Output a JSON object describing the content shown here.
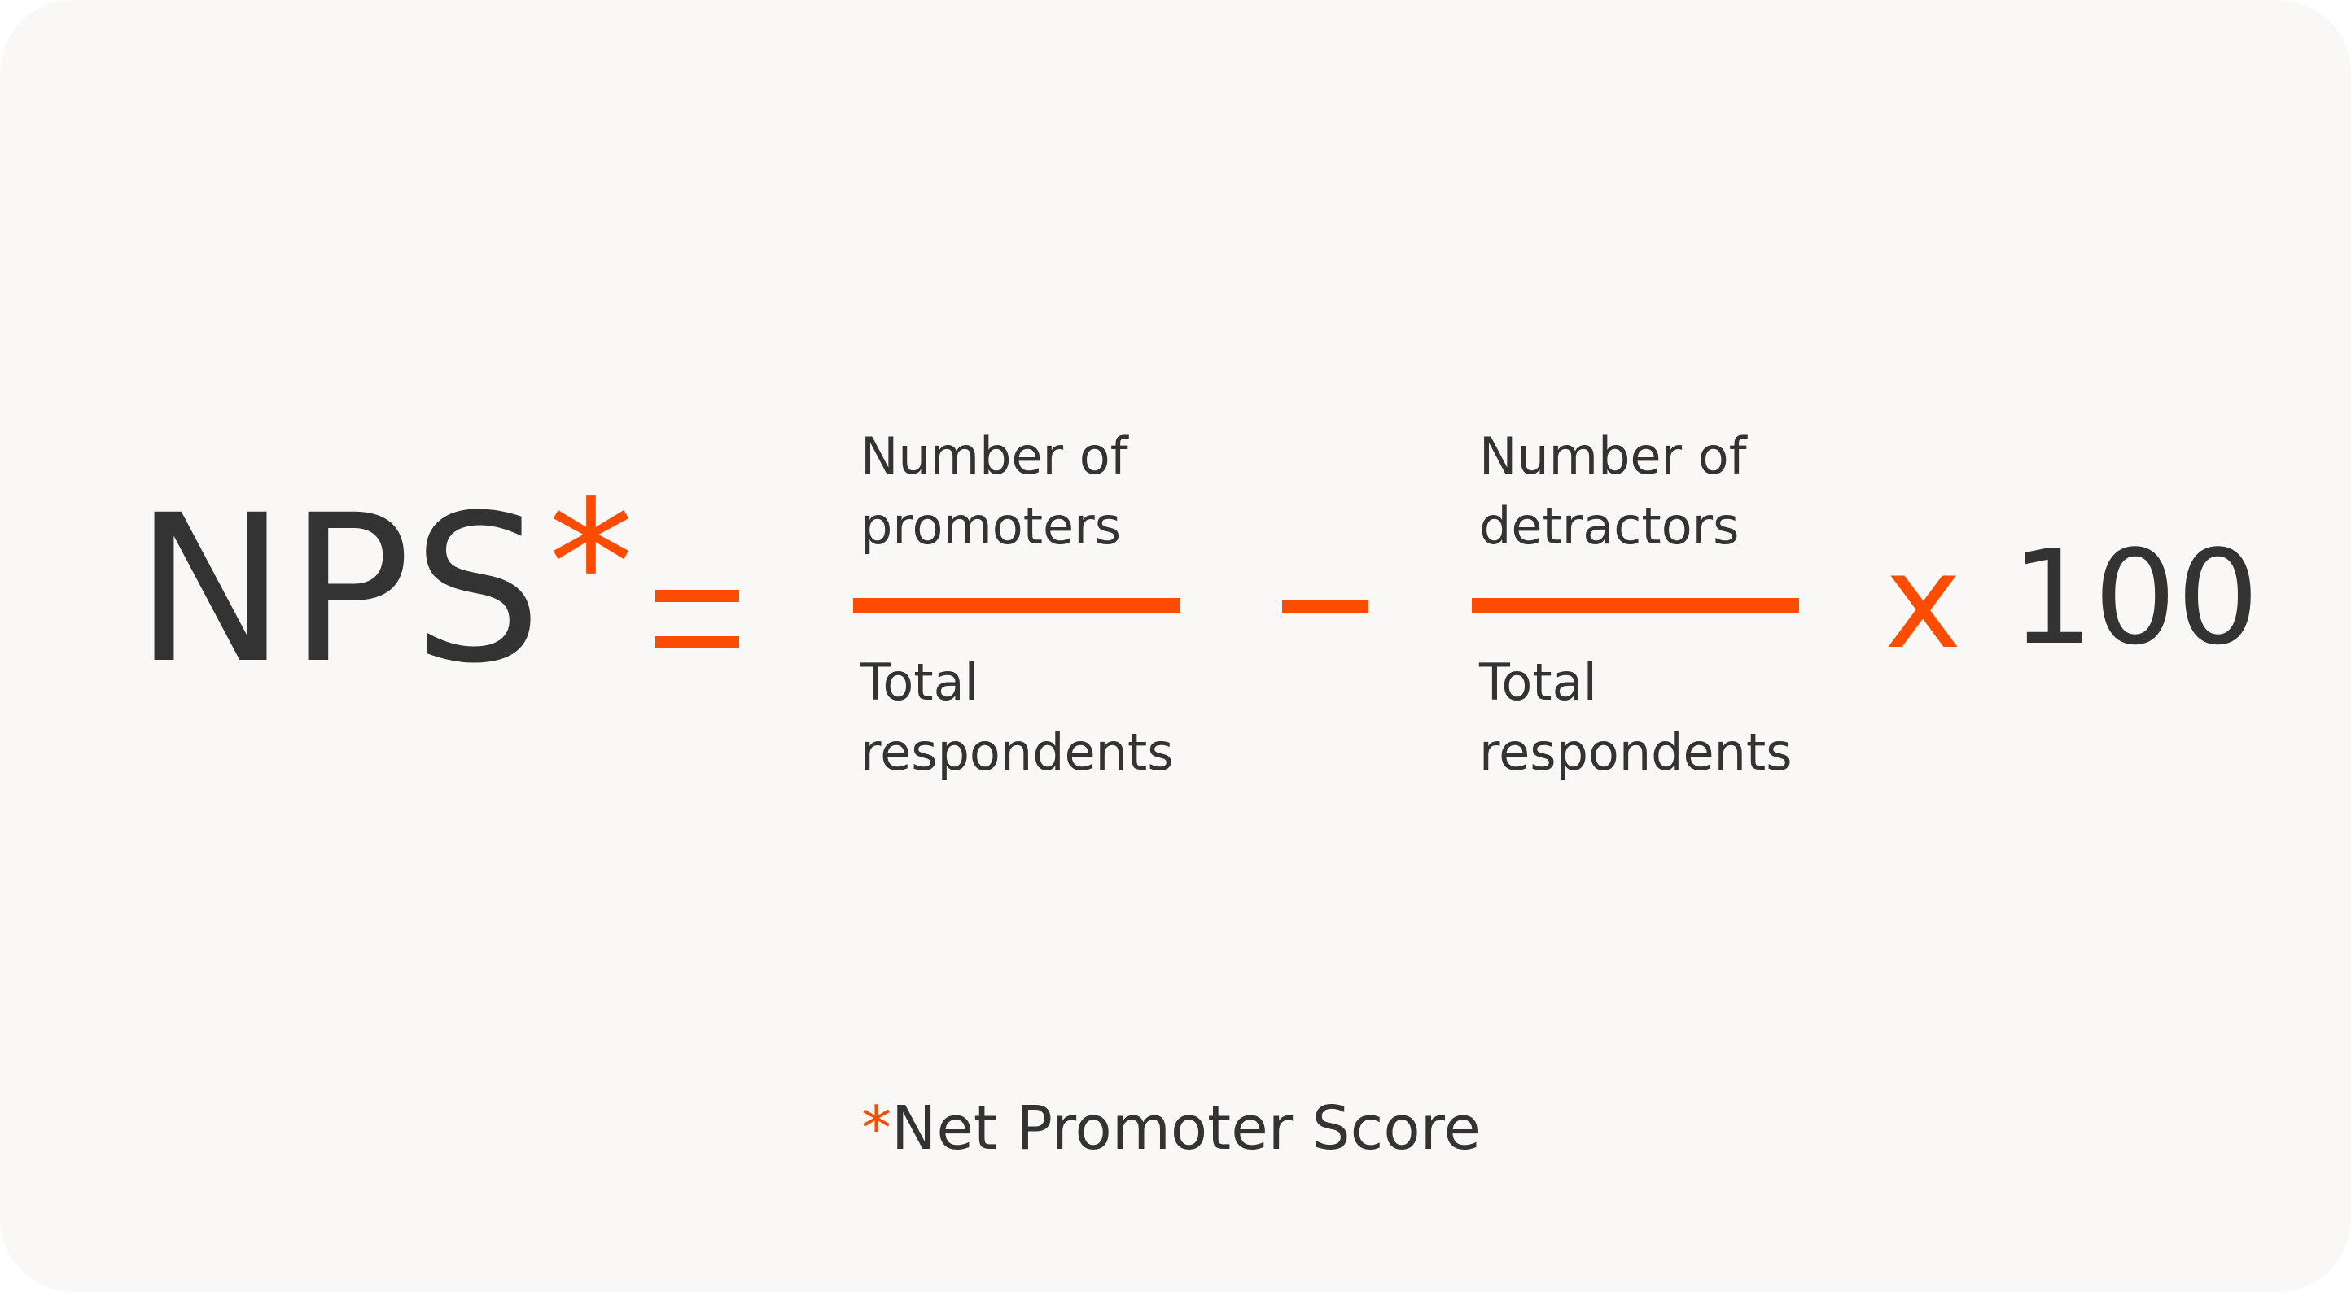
{
  "formula": {
    "lhs": "NPS",
    "asterisk": "*",
    "first_fraction": {
      "numerator_line1": "Number of",
      "numerator_line2": "promoters",
      "denominator_line1": "Total",
      "denominator_line2": "respondents"
    },
    "second_fraction": {
      "numerator_line1": "Number of",
      "numerator_line2": "detractors",
      "denominator_line1": "Total",
      "denominator_line2": "respondents"
    },
    "multiply_symbol": "x",
    "multiplier": "100"
  },
  "footnote": {
    "asterisk": "*",
    "text": "Net Promoter Score"
  },
  "colors": {
    "accent": "#fc4c02",
    "text": "#333333",
    "background": "#f9f8f6"
  }
}
